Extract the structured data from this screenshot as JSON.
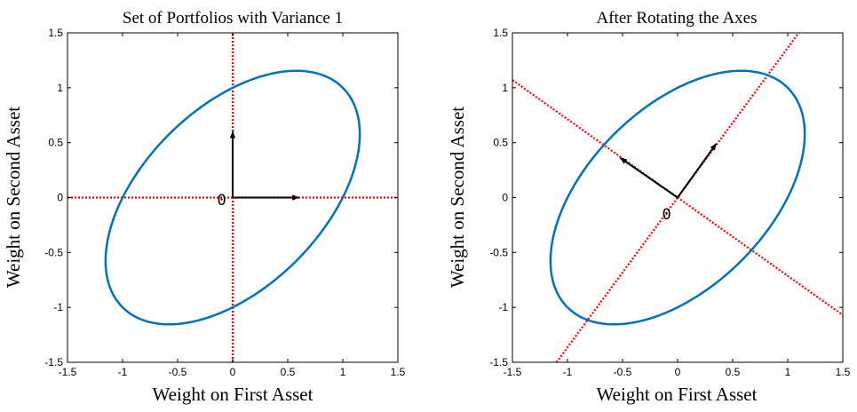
{
  "chart_data": [
    {
      "type": "line",
      "title": "Set of Portfolios with Variance 1",
      "xlabel": "Weight on First Asset",
      "ylabel": "Weight on Second Asset",
      "xlim": [
        -1.5,
        1.5
      ],
      "ylim": [
        -1.5,
        1.5
      ],
      "xticks": [
        "-1.5",
        "-1",
        "-0.5",
        "0",
        "0.5",
        "1",
        "1.5"
      ],
      "yticks": [
        "-1.5",
        "-1",
        "-0.5",
        "0",
        "0.5",
        "1",
        "1.5"
      ],
      "grid": false,
      "ellipse": {
        "semi_major": 1.414,
        "semi_minor": 0.816,
        "angle_deg": 45,
        "color": "#0072BD"
      },
      "reference_lines": [
        {
          "kind": "line",
          "x1": -1.5,
          "y1": 0,
          "x2": 1.5,
          "y2": 0,
          "color": "#ff0000",
          "style": "dotted"
        },
        {
          "kind": "line",
          "x1": 0,
          "y1": -1.5,
          "x2": 0,
          "y2": 1.5,
          "color": "#ff0000",
          "style": "dotted"
        }
      ],
      "arrows": [
        {
          "x1": 0,
          "y1": 0,
          "x2": 0.6,
          "y2": 0
        },
        {
          "x1": 0,
          "y1": 0,
          "x2": 0,
          "y2": 0.6
        }
      ],
      "origin_label": {
        "text": "0",
        "x": -0.1,
        "y": -0.02
      }
    },
    {
      "type": "line",
      "title": "After Rotating the Axes",
      "xlabel": "Weight on First Asset",
      "ylabel": "Weight on Second Asset",
      "xlim": [
        -1.5,
        1.5
      ],
      "ylim": [
        -1.5,
        1.5
      ],
      "xticks": [
        "-1.5",
        "-1",
        "-0.5",
        "0",
        "0.5",
        "1",
        "1.5"
      ],
      "yticks": [
        "-1.5",
        "-1",
        "-0.5",
        "0",
        "0.5",
        "1",
        "1.5"
      ],
      "grid": false,
      "ellipse": {
        "semi_major": 1.414,
        "semi_minor": 0.816,
        "angle_deg": 45,
        "color": "#0072BD"
      },
      "reference_lines": [
        {
          "kind": "line",
          "x1": -1.1,
          "y1": -1.5,
          "x2": 1.1,
          "y2": 1.5,
          "color": "#ff0000",
          "style": "dotted"
        },
        {
          "kind": "line",
          "x1": -1.5,
          "y1": 1.07,
          "x2": 1.5,
          "y2": -1.07,
          "color": "#ff0000",
          "style": "dotted"
        }
      ],
      "arrows": [
        {
          "x1": 0,
          "y1": 0,
          "x2": 0.35,
          "y2": 0.49
        },
        {
          "x1": 0,
          "y1": 0,
          "x2": -0.52,
          "y2": 0.36
        }
      ],
      "origin_label": {
        "text": "0",
        "x": -0.1,
        "y": -0.15
      }
    }
  ]
}
